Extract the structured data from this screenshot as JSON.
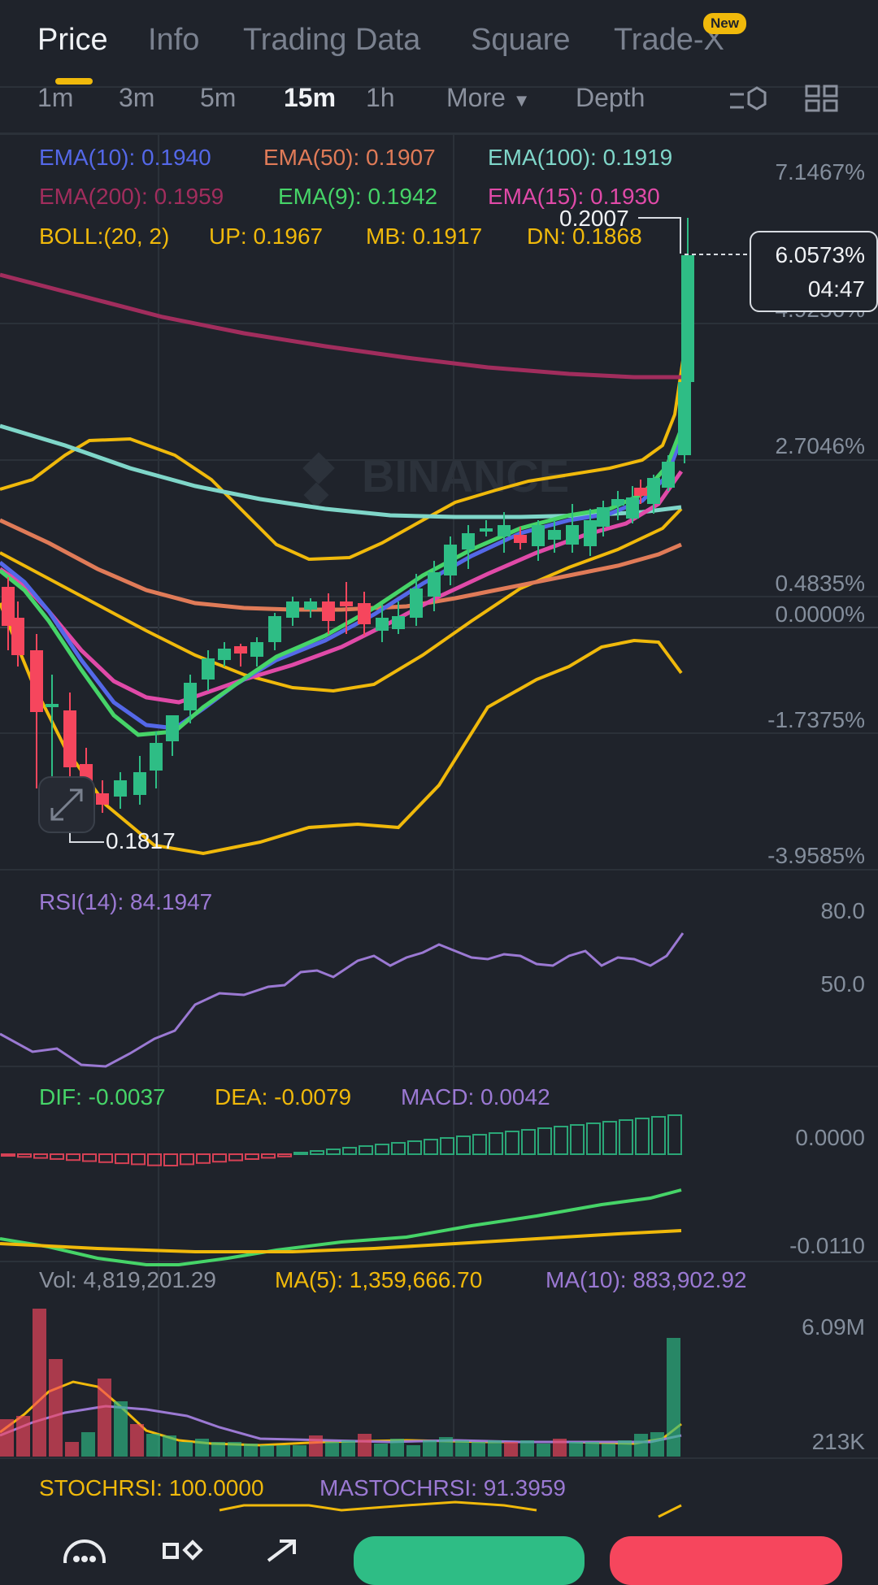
{
  "tabs": {
    "items": [
      {
        "label": "Price"
      },
      {
        "label": "Info"
      },
      {
        "label": "Trading Data"
      },
      {
        "label": "Square"
      },
      {
        "label": "Trade-X"
      }
    ],
    "new_badge": "New"
  },
  "timeframes": {
    "items": [
      {
        "label": "1m"
      },
      {
        "label": "3m"
      },
      {
        "label": "5m"
      },
      {
        "label": "15m"
      },
      {
        "label": "1h"
      }
    ],
    "more": "More",
    "depth": "Depth"
  },
  "ema": {
    "ema10": "EMA(10): 0.1940",
    "ema50": "EMA(50): 0.1907",
    "ema100": "EMA(100): 0.1919",
    "ema200": "EMA(200): 0.1959",
    "ema9": "EMA(9): 0.1942",
    "ema15": "EMA(15): 0.1930"
  },
  "boll": {
    "label": "BOLL:(20, 2)",
    "up": "UP: 0.1967",
    "mb": "MB: 0.1917",
    "dn": "DN: 0.1868"
  },
  "colors": {
    "ema10": "#5468e8",
    "ema50": "#e07b58",
    "ema100": "#7fd6c9",
    "ema200": "#a12d5d",
    "ema9": "#46d468",
    "ema15": "#e04aa8",
    "boll": "#f0b90b",
    "up": "#2ebd85",
    "down": "#f6465d",
    "rsi": "#9b79d3"
  },
  "price_axis": {
    "labels": [
      "7.1467%",
      "4.9256%",
      "2.7046%",
      "0.4835%",
      "0.0000%",
      "-1.7375%",
      "-3.9585%"
    ]
  },
  "markers": {
    "high": "0.2007",
    "low": "0.1817"
  },
  "current": {
    "percent": "6.0573%",
    "countdown": "04:47"
  },
  "watermark": "BINANCE",
  "rsi": {
    "label": "RSI(14): 84.1947",
    "axis": [
      "80.0",
      "50.0"
    ]
  },
  "macd": {
    "dif": "DIF: -0.0037",
    "dea": "DEA: -0.0079",
    "macd": "MACD: 0.0042",
    "axis": [
      "0.0000",
      "-0.0110"
    ]
  },
  "volume": {
    "vol": "Vol: 4,819,201.29",
    "ma5": "MA(5): 1,359,666.70",
    "ma10": "MA(10): 883,902.92",
    "axis": [
      "6.09M",
      "213K"
    ]
  },
  "stochrsi": {
    "stoch": "STOCHRSI: 100.0000",
    "ma": "MASTOCHRSI: 91.3959"
  },
  "icons": [
    "indicator-settings-icon",
    "layout-grid-icon",
    "expand-icon",
    "chat-icon",
    "apps-icon",
    "share-icon"
  ]
}
